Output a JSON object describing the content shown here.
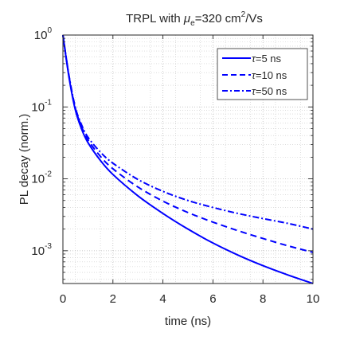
{
  "chart_data": {
    "type": "line",
    "title": {
      "prefix": "TRPL with ",
      "mu": "μ",
      "mu_sub": "e",
      "value": "=320 cm",
      "value_sup": "2",
      "unit": "/Vs"
    },
    "xlabel": "time (ns)",
    "ylabel": "PL decay (norm.)",
    "xlim": [
      0,
      10
    ],
    "ylim": [
      0.00035,
      1
    ],
    "yscale": "log",
    "grid": true,
    "minor_grid": true,
    "legend_position": "top-right",
    "x_ticks": [
      {
        "value": 0,
        "label": "0"
      },
      {
        "value": 2,
        "label": "2"
      },
      {
        "value": 4,
        "label": "4"
      },
      {
        "value": 6,
        "label": "6"
      },
      {
        "value": 8,
        "label": "8"
      },
      {
        "value": 10,
        "label": "10"
      }
    ],
    "y_ticks": [
      {
        "value": 1,
        "base": "10",
        "exp": "0"
      },
      {
        "value": 0.1,
        "base": "10",
        "exp": "-1"
      },
      {
        "value": 0.01,
        "base": "10",
        "exp": "-2"
      },
      {
        "value": 0.001,
        "base": "10",
        "exp": "-3"
      }
    ],
    "x": [
      0,
      0.25,
      0.5,
      0.75,
      1.0,
      1.5,
      2,
      3,
      4,
      5,
      6,
      7,
      8,
      9,
      10
    ],
    "series": [
      {
        "name_prefix": "τ",
        "name_suffix": "=5 ns",
        "dash": "solid",
        "color": "#0000FF",
        "values": [
          1.0,
          0.25,
          0.09,
          0.049,
          0.032,
          0.018,
          0.0115,
          0.0058,
          0.0033,
          0.002,
          0.00128,
          0.00087,
          0.00062,
          0.00046,
          0.00035
        ]
      },
      {
        "name_prefix": "τ",
        "name_suffix": "=10 ns",
        "dash": "dashed",
        "color": "#0000FF",
        "values": [
          1.0,
          0.26,
          0.095,
          0.053,
          0.035,
          0.0205,
          0.0138,
          0.0077,
          0.0049,
          0.0034,
          0.0025,
          0.0019,
          0.00148,
          0.00117,
          0.00095
        ]
      },
      {
        "name_prefix": "τ",
        "name_suffix": "=50 ns",
        "dash": "dashdot",
        "color": "#0000FF",
        "values": [
          1.0,
          0.265,
          0.098,
          0.056,
          0.038,
          0.0235,
          0.0165,
          0.0098,
          0.0067,
          0.005,
          0.004,
          0.0033,
          0.0028,
          0.0024,
          0.002
        ]
      }
    ]
  }
}
